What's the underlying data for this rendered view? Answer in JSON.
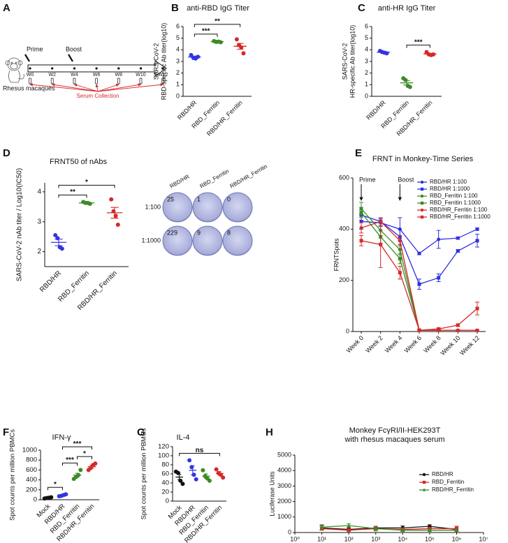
{
  "diagram": {
    "panel": "A",
    "prime": "Prime",
    "boost": "Boost",
    "weeks": [
      "W0",
      "W2",
      "W4",
      "W6",
      "W8",
      "W10",
      "W12"
    ],
    "animal": "Rhesus macaques",
    "collection": "Serum Collection"
  },
  "chart_data": [
    {
      "type": "dot",
      "panel": "B",
      "title": "anti-RBD IgG Titer",
      "ylabel": [
        "SARS-CoV-2",
        "RBD-specific Ab titer(log10)"
      ],
      "categories": [
        "RBD/HR",
        "RBD_Ferritin",
        "RBD/HR_Ferritin"
      ],
      "colors": [
        "#3434e0",
        "#3d8a26",
        "#d62828"
      ],
      "points": [
        [
          3.55,
          3.3,
          3.25,
          3.4
        ],
        [
          4.75,
          4.68,
          4.7,
          4.65
        ],
        [
          4.9,
          4.4,
          4.2,
          3.7
        ]
      ],
      "means": [
        3.38,
        4.7,
        4.3
      ],
      "errors": [
        0.08,
        0.02,
        0.25
      ],
      "ylim": [
        0,
        6
      ],
      "yticks": [
        0,
        1,
        2,
        3,
        4,
        5,
        6
      ],
      "brackets": [
        {
          "from": 0,
          "to": 1,
          "label": "***"
        },
        {
          "from": 0,
          "to": 2,
          "label": "**"
        }
      ]
    },
    {
      "type": "dot",
      "panel": "C",
      "title": "anti-HR IgG Titer",
      "ylabel": [
        "SARS-CoV-2",
        "HR-specific Ab titer(log10)"
      ],
      "categories": [
        "RBD/HR",
        "RBD_Ferritin",
        "RBD/HR_Ferritin"
      ],
      "colors": [
        "#3434e0",
        "#3d8a26",
        "#d62828"
      ],
      "points": [
        [
          3.9,
          3.8,
          3.75,
          3.7
        ],
        [
          1.55,
          1.4,
          0.9,
          0.8
        ],
        [
          3.8,
          3.6,
          3.55,
          3.6
        ]
      ],
      "means": [
        3.79,
        1.16,
        3.64
      ],
      "errors": [
        0.05,
        0.18,
        0.06
      ],
      "ylim": [
        0,
        6
      ],
      "yticks": [
        0,
        1,
        2,
        3,
        4,
        5,
        6
      ],
      "brackets": [
        {
          "from": 1,
          "to": 2,
          "label": "***"
        }
      ]
    },
    {
      "type": "dot",
      "panel": "D",
      "title": "FRNT50 of nAbs",
      "ylabel": [
        "SARS-CoV-2 nAb titer / Log10(IC50)"
      ],
      "categories": [
        "RBD/HR",
        "RBD_Ferritin",
        "RBD/HR_Ferritin"
      ],
      "colors": [
        "#3434e0",
        "#3d8a26",
        "#d62828"
      ],
      "points": [
        [
          2.55,
          2.45,
          2.15,
          2.1
        ],
        [
          3.66,
          3.63,
          3.63,
          3.6
        ],
        [
          3.75,
          3.35,
          3.2,
          2.9
        ]
      ],
      "means": [
        2.31,
        3.63,
        3.3
      ],
      "errors": [
        0.11,
        0.01,
        0.18
      ],
      "ylim": [
        1.5,
        4.3
      ],
      "yticks": [
        2,
        3,
        4
      ],
      "brackets": [
        {
          "from": 0,
          "to": 1,
          "label": "**"
        },
        {
          "from": 0,
          "to": 2,
          "label": "*"
        }
      ]
    },
    {
      "type": "plate-image",
      "columns": [
        "RBD/HR",
        "RBD_Ferritin",
        "RBD/HR_Ferritin"
      ],
      "rows": [
        "1:100",
        "1:1000"
      ],
      "counts": [
        [
          25,
          1,
          0
        ],
        [
          229,
          9,
          8
        ]
      ]
    },
    {
      "type": "line",
      "panel": "E",
      "title": "FRNT in Monkey-Time Series",
      "ylabel": "FRNTSpots",
      "categories": [
        "Week 0",
        "Week 2",
        "Week 4",
        "Week 6",
        "Week 8",
        "Week 10",
        "Week 12"
      ],
      "ylim": [
        0,
        600
      ],
      "yticks": [
        0,
        200,
        400,
        600
      ],
      "legend": "upper right",
      "annotations": [
        {
          "text": "Prime",
          "category": 0
        },
        {
          "text": "Boost",
          "category": 2
        }
      ],
      "series": [
        {
          "name": "RBD/HR 1:100",
          "color": "#2f2fe6",
          "marker": "circle",
          "values": [
            430,
            425,
            400,
            305,
            360,
            365,
            400
          ],
          "errors": [
            30,
            15,
            45,
            5,
            35,
            5,
            5
          ]
        },
        {
          "name": "RBD/HR 1:1000",
          "color": "#2f2fe6",
          "marker": "square",
          "values": [
            455,
            430,
            370,
            185,
            210,
            315,
            355
          ],
          "errors": [
            20,
            15,
            30,
            20,
            15,
            5,
            25
          ]
        },
        {
          "name": "RBD_Ferritin 1:100",
          "color": "#3d8a26",
          "marker": "circle",
          "values": [
            480,
            395,
            320,
            5,
            5,
            null,
            null
          ],
          "errors": [
            25,
            20,
            20,
            3,
            3,
            null,
            null
          ]
        },
        {
          "name": "RBD_Ferritin 1:1000",
          "color": "#3d8a26",
          "marker": "square",
          "values": [
            465,
            370,
            285,
            5,
            5,
            null,
            null
          ],
          "errors": [
            20,
            25,
            20,
            3,
            3,
            null,
            null
          ]
        },
        {
          "name": "RBD/HR_Ferritin 1:100",
          "color": "#d62828",
          "marker": "circle",
          "values": [
            405,
            430,
            355,
            5,
            5,
            5,
            5
          ],
          "errors": [
            20,
            15,
            20,
            3,
            3,
            3,
            3
          ]
        },
        {
          "name": "RBD/HR_Ferritin 1:1000",
          "color": "#d62828",
          "marker": "square",
          "values": [
            355,
            340,
            230,
            5,
            10,
            25,
            90
          ],
          "errors": [
            20,
            90,
            25,
            3,
            5,
            5,
            25
          ]
        }
      ]
    },
    {
      "type": "dot",
      "panel": "F",
      "title": "IFN-γ",
      "ylabel": [
        "Spot counts per million PBMCs"
      ],
      "categories": [
        "Mock",
        "RBD/HR",
        "RBD_Ferritin",
        "RBD/HR_Ferritin"
      ],
      "colors": [
        "#111111",
        "#3434e0",
        "#3d8a26",
        "#d62828"
      ],
      "points": [
        [
          25,
          35,
          40,
          50
        ],
        [
          70,
          80,
          95,
          110
        ],
        [
          420,
          460,
          500,
          600
        ],
        [
          600,
          640,
          700,
          730
        ]
      ],
      "means": [
        38,
        89,
        495,
        668
      ],
      "errors": [
        5,
        8,
        40,
        28
      ],
      "ylim": [
        0,
        1000
      ],
      "yticks": [
        0,
        200,
        400,
        600,
        800,
        1000
      ],
      "brackets": [
        {
          "from": 0,
          "to": 1,
          "label": "*"
        },
        {
          "from": 1,
          "to": 2,
          "label": "***"
        },
        {
          "from": 2,
          "to": 3,
          "label": "*"
        },
        {
          "from": 1,
          "to": 3,
          "label": "***"
        }
      ]
    },
    {
      "type": "dot",
      "panel": "G",
      "title": "IL-4",
      "ylabel": [
        "Spot counts per million PBMCs"
      ],
      "categories": [
        "Mock",
        "RBD/HR",
        "RBD_Ferritin",
        "RBD/HR_Ferritin"
      ],
      "colors": [
        "#111111",
        "#3434e0",
        "#3d8a26",
        "#d62828"
      ],
      "points": [
        [
          65,
          62,
          45,
          38
        ],
        [
          90,
          75,
          58,
          48
        ],
        [
          68,
          55,
          50,
          45
        ],
        [
          70,
          62,
          58,
          52
        ]
      ],
      "means": [
        53,
        68,
        55,
        61
      ],
      "errors": [
        6,
        10,
        5,
        4
      ],
      "ylim": [
        0,
        120
      ],
      "yticks": [
        0,
        20,
        40,
        60,
        80,
        100,
        120
      ],
      "brackets": [
        {
          "from": 0,
          "to": 3,
          "label": "ns"
        }
      ]
    },
    {
      "type": "line",
      "panel": "H",
      "title": [
        "Monkey FcγRI/II-HEK293T",
        "with rhesus macaques serum"
      ],
      "ylabel": "Luciferase Units",
      "x": [
        10,
        100,
        1000,
        10000,
        100000,
        1000000
      ],
      "xscale": "log",
      "xlim": [
        1,
        10000000
      ],
      "xticks": [
        {
          "value": 1,
          "label": "10⁰"
        },
        {
          "value": 10,
          "label": "10¹"
        },
        {
          "value": 100,
          "label": "10²"
        },
        {
          "value": 1000,
          "label": "10³"
        },
        {
          "value": 10000,
          "label": "10⁴"
        },
        {
          "value": 100000,
          "label": "10⁵"
        },
        {
          "value": 1000000,
          "label": "10⁶"
        },
        {
          "value": 10000000,
          "label": "10⁷"
        }
      ],
      "ylim": [
        0,
        5000
      ],
      "yticks": [
        0,
        1000,
        2000,
        3000,
        4000,
        5000
      ],
      "legend": "upper right",
      "series": [
        {
          "name": "RBD/HR",
          "color": "#111111",
          "marker": "circle",
          "values": [
            300,
            200,
            300,
            300,
            400,
            200
          ],
          "errors": [
            150,
            80,
            100,
            120,
            100,
            200
          ]
        },
        {
          "name": "RBD_Ferritin",
          "color": "#d62828",
          "marker": "square",
          "values": [
            250,
            150,
            250,
            200,
            250,
            250
          ],
          "errors": [
            100,
            60,
            80,
            80,
            80,
            150
          ]
        },
        {
          "name": "RBD/HR_Ferritin",
          "color": "#3d8a26",
          "marker": "triangle",
          "values": [
            350,
            450,
            250,
            150,
            150,
            150
          ],
          "errors": [
            150,
            120,
            150,
            80,
            80,
            80
          ]
        }
      ]
    }
  ]
}
